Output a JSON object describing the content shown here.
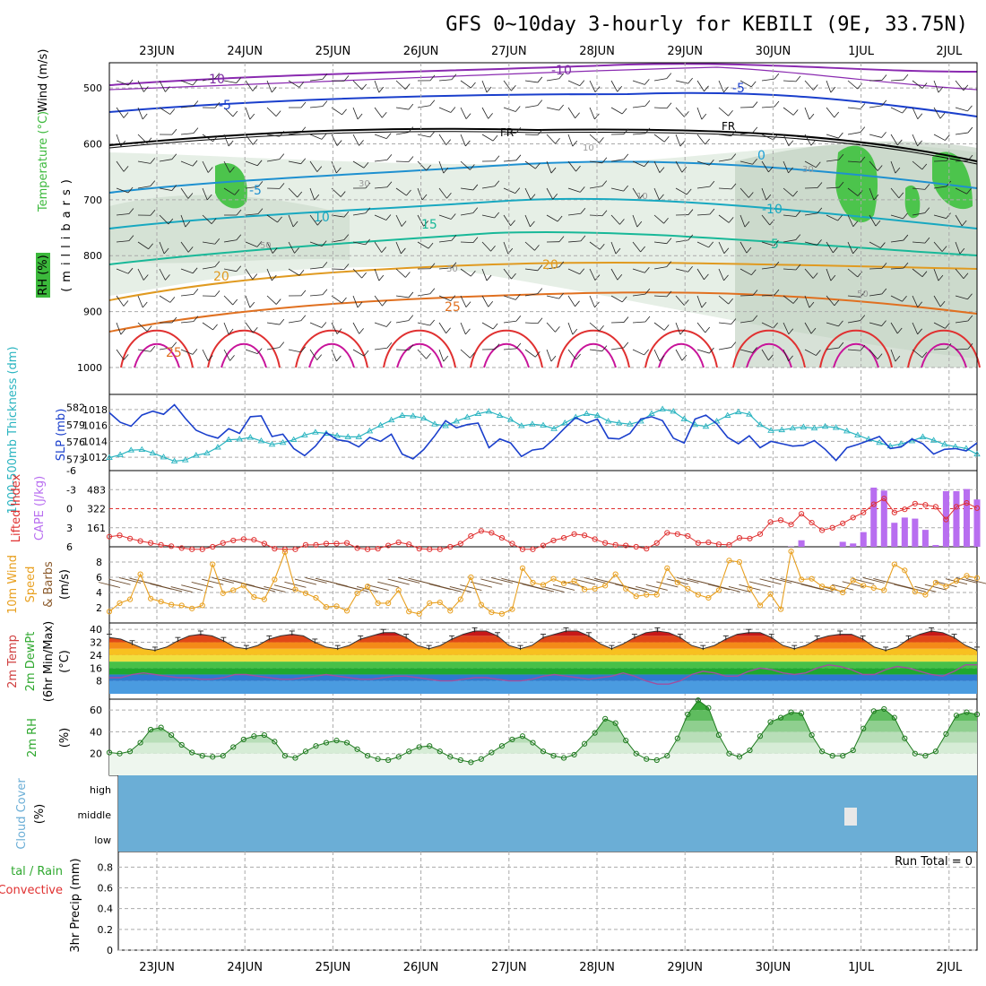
{
  "title": "GFS 0~10day 3-hourly for KEBILI (9E, 33.75N)",
  "dates": [
    "23JUN",
    "24JUN",
    "25JUN",
    "26JUN",
    "27JUN",
    "28JUN",
    "29JUN",
    "30JUN",
    "1JUL",
    "2JUL"
  ],
  "colors": {
    "rh": "#3cb93c",
    "slp": "#1a3fcc",
    "thickness": "#2ab4c0",
    "cape": "#b86ef0",
    "lifted": "#e03030",
    "wind": "#e8a020",
    "rh2m": "#2fa82f",
    "cloud": "#6baed6",
    "temp": "#d04040"
  },
  "panels": {
    "upper": {
      "ylabel_rh": "RH (%)",
      "ylabel_temp": "Temperature (°C)",
      "ylabel_wind": "Wind (m/s)",
      "ylabel_mb": "(millibars)",
      "yticks": [
        "500",
        "600",
        "700",
        "800",
        "900",
        "1000"
      ],
      "contour_labels": {
        "m10a": "-10",
        "m10b": "-10",
        "m5a": "-5",
        "m5b": "-5",
        "fr1": "FR",
        "fr2": "FR",
        "c5": "-5",
        "c0": "0",
        "c10a": "10",
        "cm10": "-10",
        "c15": "15",
        "c5b": "5",
        "c20a": "20",
        "c20b": "20",
        "c25a": "25",
        "c25b": "25",
        "rh10": "10",
        "rh30a": "30",
        "rh30b": "30",
        "rh50a": "50",
        "rh50b": "50",
        "rh30c": "30",
        "rh10b": "10"
      }
    },
    "slp": {
      "ylabel_thick": "1000-500mb Thickness (dm)",
      "ylabel_slp": "SLP (mb)",
      "left_ticks": [
        "582",
        "579",
        "576",
        "573"
      ],
      "right_ticks": [
        "1018",
        "1016",
        "1014",
        "1012"
      ]
    },
    "cape": {
      "ylabel_li": "Lifted Index",
      "ylabel_cape": "CAPE (J/kg)",
      "left_ticks": [
        "-6",
        "-3",
        "0",
        "3",
        "6"
      ],
      "right_ticks": [
        "483",
        "322",
        "161"
      ]
    },
    "wind": {
      "ylabel_a": "10m Wind",
      "ylabel_b": "Speed",
      "ylabel_c": "& Barbs",
      "ylabel_d": "(m/s)",
      "yticks": [
        "8",
        "6",
        "4",
        "2"
      ]
    },
    "temp": {
      "ylabel_a": "2m Temp",
      "ylabel_b": "2m DewPt",
      "ylabel_c": "(6hr Min/Max)",
      "ylabel_d": "(°C)",
      "yticks": [
        "40",
        "32",
        "24",
        "16",
        "8"
      ]
    },
    "rh2m": {
      "ylabel_a": "2m RH",
      "ylabel_b": "(%)",
      "yticks": [
        "60",
        "40",
        "20"
      ]
    },
    "cloud": {
      "ylabel_a": "Cloud Cover",
      "ylabel_b": "(%)",
      "yticks": [
        "high",
        "middle",
        "low"
      ]
    },
    "precip": {
      "ylabel_a": "tal / Rain",
      "ylabel_b": "Convective",
      "ylabel_c": "3hr Precip (mm)",
      "yticks": [
        "0.8",
        "0.6",
        "0.4",
        "0.2",
        "0"
      ],
      "run_total": "Run Total = 0"
    }
  },
  "chart_data": [
    {
      "type": "line",
      "title": "GFS 0~10day 3-hourly for KEBILI (9E, 33.75N)",
      "series": [
        {
          "name": "SLP (mb)",
          "values": [
            1017.6,
            1016.4,
            1015.9,
            1017.3,
            1017.8,
            1017.4,
            1018.6,
            1016.9,
            1015.4,
            1014.8,
            1014.4,
            1015.6,
            1015.0,
            1017.1,
            1017.2,
            1014.6,
            1014.9,
            1013.1,
            1012.2,
            1013.4,
            1015.1,
            1014.2,
            1014.0,
            1013.3,
            1014.5,
            1014.0,
            1014.9,
            1012.4,
            1011.8,
            1013.0,
            1014.7,
            1016.6,
            1015.7,
            1016.1,
            1016.3,
            1013.2,
            1014.3,
            1013.8,
            1012.1,
            1012.9,
            1013.1,
            1014.3,
            1015.7,
            1017.0,
            1016.3,
            1016.8,
            1014.4,
            1014.3,
            1015.0,
            1016.8,
            1017.1,
            1016.6,
            1014.4,
            1013.8,
            1016.8,
            1017.3,
            1016.2,
            1014.5,
            1013.7,
            1014.7,
            1013.2,
            1014.0,
            1013.7,
            1013.4,
            1013.5,
            1014.1,
            1013.0,
            1011.6,
            1013.2,
            1013.6,
            1014.1,
            1014.6,
            1013.1,
            1013.3,
            1014.3,
            1013.7,
            1012.4,
            1013.0,
            1013.1,
            1012.8,
            1013.8
          ]
        },
        {
          "name": "1000-500mb Thickness (dm)",
          "values": [
            573.3,
            573.8,
            574.6,
            574.7,
            574.1,
            573.4,
            572.7,
            572.9,
            573.7,
            574.1,
            575.1,
            576.4,
            576.5,
            576.8,
            576.2,
            575.6,
            575.9,
            576.4,
            577.2,
            577.7,
            577.5,
            577.1,
            576.9,
            576.9,
            577.9,
            578.9,
            579.8,
            580.6,
            580.5,
            580.1,
            579.1,
            578.8,
            579.6,
            580.3,
            580.9,
            581.3,
            580.6,
            579.9,
            578.8,
            579.1,
            578.9,
            578.3,
            579.3,
            580.3,
            580.9,
            580.6,
            579.6,
            579.3,
            579.1,
            579.6,
            580.9,
            581.7,
            581.3,
            580.0,
            579.0,
            578.7,
            579.6,
            580.6,
            581.2,
            580.8,
            579.0,
            578.0,
            578.1,
            578.4,
            578.6,
            578.4,
            578.7,
            578.5,
            577.9,
            577.2,
            576.5,
            575.9,
            575.3,
            575.7,
            576.2,
            576.9,
            576.3,
            575.6,
            575.2,
            574.9,
            573.9
          ]
        }
      ],
      "xlabel": "",
      "ylabel": "SLP (mb)"
    },
    {
      "type": "bar",
      "series": [
        {
          "name": "Lifted Index",
          "values": [
            4.4,
            4.2,
            4.7,
            5.1,
            5.4,
            5.7,
            5.9,
            6.2,
            6.4,
            6.4,
            6.0,
            5.4,
            5.0,
            4.8,
            4.9,
            5.5,
            6.3,
            6.4,
            6.4,
            5.7,
            5.7,
            5.5,
            5.5,
            5.4,
            6.2,
            6.4,
            6.3,
            5.8,
            5.3,
            5.6,
            6.3,
            6.4,
            6.4,
            6.0,
            5.5,
            4.3,
            3.5,
            3.8,
            4.6,
            5.5,
            6.4,
            6.4,
            5.8,
            5.0,
            4.6,
            4.0,
            4.2,
            4.8,
            5.4,
            5.7,
            5.8,
            6.0,
            6.3,
            5.4,
            3.8,
            4.0,
            4.3,
            5.4,
            5.3,
            5.6,
            5.7,
            4.6,
            4.7,
            4.0,
            2.1,
            1.8,
            2.5,
            0.8,
            2.2,
            3.4,
            3.0,
            2.3,
            1.4,
            0.6,
            -0.7,
            -1.6,
            0.6,
            0.1,
            -0.8,
            -0.6,
            -0.3,
            1.7,
            -0.3,
            -0.9,
            -0.1
          ]
        },
        {
          "name": "CAPE (J/kg)",
          "values": [
            0,
            0,
            0,
            0,
            0,
            0,
            0,
            0,
            0,
            0,
            0,
            0,
            0,
            0,
            0,
            0,
            0,
            0,
            0,
            0,
            0,
            0,
            0,
            0,
            0,
            0,
            0,
            0,
            0,
            0,
            0,
            0,
            0,
            0,
            0,
            0,
            0,
            0,
            0,
            0,
            0,
            0,
            0,
            0,
            0,
            0,
            0,
            0,
            0,
            0,
            0,
            0,
            0,
            0,
            0,
            0,
            0,
            0,
            0,
            0,
            0,
            0,
            0,
            0,
            0,
            0,
            3,
            55,
            0,
            0,
            0,
            42,
            28,
            124,
            500,
            475,
            203,
            247,
            238,
            143,
            15,
            470,
            470,
            488,
            400
          ]
        }
      ]
    },
    {
      "type": "line",
      "series": [
        {
          "name": "10m Wind Speed (m/s)",
          "values": [
            1.5,
            2.6,
            3.1,
            6.4,
            3.2,
            2.8,
            2.4,
            2.3,
            1.9,
            2.3,
            7.7,
            3.9,
            4.3,
            4.9,
            3.4,
            3.1,
            5.7,
            9.3,
            4.4,
            3.9,
            3.3,
            2.1,
            2.2,
            1.6,
            3.9,
            4.8,
            2.6,
            2.6,
            4.3,
            1.5,
            1.2,
            2.6,
            2.7,
            1.6,
            3.1,
            6.0,
            2.4,
            1.4,
            1.2,
            1.8,
            7.2,
            5.3,
            5.0,
            5.8,
            5.2,
            5.5,
            4.4,
            4.5,
            4.9,
            6.4,
            4.5,
            3.5,
            3.7,
            3.7,
            7.2,
            5.3,
            4.5,
            3.7,
            3.3,
            4.3,
            8.2,
            8.0,
            4.5,
            2.3,
            3.8,
            1.8,
            9.4,
            5.7,
            5.8,
            4.8,
            4.6,
            4.0,
            5.6,
            4.9,
            4.6,
            4.3,
            7.7,
            6.9,
            4.1,
            3.7,
            5.3,
            4.8,
            5.5,
            6.2,
            5.9
          ]
        }
      ]
    },
    {
      "type": "area",
      "series": [
        {
          "name": "2m Temp (°C)",
          "values": [
            35,
            34,
            31,
            28,
            27,
            29,
            33,
            36,
            37,
            36,
            33,
            29,
            28,
            30,
            34,
            36,
            37,
            36,
            32,
            29,
            28,
            30,
            34,
            36,
            38,
            38,
            35,
            30,
            28,
            30,
            34,
            37,
            39,
            39,
            36,
            30,
            28,
            30,
            35,
            37,
            39,
            39,
            36,
            31,
            28,
            31,
            35,
            38,
            39,
            38,
            35,
            30,
            28,
            30,
            34,
            37,
            38,
            38,
            35,
            30,
            28,
            30,
            34,
            36,
            37,
            37,
            34,
            29,
            27,
            29,
            34,
            37,
            39,
            38,
            35,
            30,
            27
          ]
        },
        {
          "name": "2m DewPt (°C)",
          "values": [
            10,
            10,
            12,
            13,
            12,
            11,
            10,
            10,
            9,
            9,
            10,
            12,
            12,
            11,
            10,
            9,
            9,
            10,
            11,
            12,
            11,
            10,
            9,
            9,
            10,
            11,
            11,
            10,
            9,
            8,
            8,
            9,
            10,
            10,
            9,
            8,
            8,
            9,
            11,
            12,
            11,
            10,
            9,
            10,
            11,
            13,
            11,
            8,
            6,
            6,
            8,
            12,
            14,
            13,
            11,
            11,
            14,
            16,
            15,
            13,
            12,
            13,
            16,
            18,
            17,
            15,
            12,
            12,
            15,
            17,
            16,
            14,
            12,
            11,
            14,
            18,
            18
          ]
        }
      ]
    },
    {
      "type": "area",
      "series": [
        {
          "name": "2m RH (%)",
          "values": [
            21,
            20,
            22,
            30,
            42,
            44,
            37,
            28,
            21,
            18,
            17,
            18,
            26,
            33,
            36,
            37,
            31,
            18,
            16,
            22,
            27,
            30,
            32,
            30,
            24,
            18,
            15,
            14,
            17,
            22,
            26,
            27,
            22,
            17,
            14,
            12,
            15,
            21,
            27,
            33,
            36,
            30,
            22,
            18,
            16,
            19,
            29,
            39,
            52,
            48,
            32,
            20,
            15,
            14,
            18,
            34,
            56,
            69,
            62,
            37,
            20,
            17,
            23,
            36,
            49,
            53,
            58,
            57,
            37,
            22,
            18,
            18,
            23,
            43,
            59,
            61,
            53,
            34,
            20,
            18,
            22,
            38,
            55,
            58,
            56
          ]
        }
      ]
    }
  ]
}
